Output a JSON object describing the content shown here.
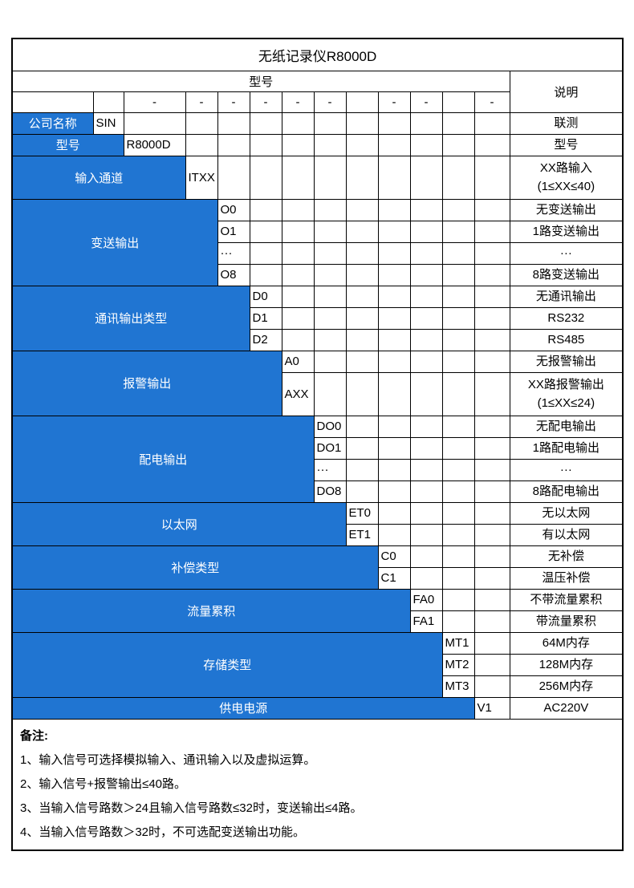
{
  "title": "无纸记录仪R8000D",
  "header": {
    "model_label": "型号",
    "desc_label": "说明"
  },
  "dash_row": [
    "",
    "",
    "-",
    "-",
    "-",
    "-",
    "-",
    "-",
    "",
    "-",
    "-",
    "",
    "-"
  ],
  "groups": [
    {
      "label": "公司名称",
      "span": 1,
      "rows": [
        {
          "code": "SIN",
          "desc": "联测"
        }
      ]
    },
    {
      "label": "型号",
      "span": 2,
      "rows": [
        {
          "code": "R8000D",
          "desc": "型号"
        }
      ]
    },
    {
      "label": "输入通道",
      "span": 3,
      "rows": [
        {
          "code": "ITXX",
          "desc": "XX路输入\n(1≤XX≤40)",
          "tall": true
        }
      ]
    },
    {
      "label": "变送输出",
      "span": 4,
      "rows": [
        {
          "code": "O0",
          "desc": "无变送输出"
        },
        {
          "code": "O1",
          "desc": "1路变送输出"
        },
        {
          "code": "···",
          "desc": "···"
        },
        {
          "code": "O8",
          "desc": "8路变送输出"
        }
      ]
    },
    {
      "label": "通讯输出类型",
      "span": 5,
      "rows": [
        {
          "code": "D0",
          "desc": "无通讯输出"
        },
        {
          "code": "D1",
          "desc": "RS232"
        },
        {
          "code": "D2",
          "desc": "RS485"
        }
      ]
    },
    {
      "label": "报警输出",
      "span": 6,
      "rows": [
        {
          "code": "A0",
          "desc": "无报警输出"
        },
        {
          "code": "AXX",
          "desc": "XX路报警输出\n(1≤XX≤24)",
          "tall": true
        }
      ]
    },
    {
      "label": "配电输出",
      "span": 7,
      "rows": [
        {
          "code": "DO0",
          "desc": "无配电输出"
        },
        {
          "code": "DO1",
          "desc": "1路配电输出"
        },
        {
          "code": "···",
          "desc": "···"
        },
        {
          "code": "DO8",
          "desc": "8路配电输出"
        }
      ]
    },
    {
      "label": "以太网",
      "span": 8,
      "rows": [
        {
          "code": "ET0",
          "desc": "无以太网"
        },
        {
          "code": "ET1",
          "desc": "有以太网"
        }
      ]
    },
    {
      "label": "补偿类型",
      "span": 9,
      "rows": [
        {
          "code": "C0",
          "desc": "无补偿"
        },
        {
          "code": "C1",
          "desc": "温压补偿"
        }
      ]
    },
    {
      "label": "流量累积",
      "span": 10,
      "rows": [
        {
          "code": "FA0",
          "desc": "不带流量累积"
        },
        {
          "code": "FA1",
          "desc": "带流量累积"
        }
      ]
    },
    {
      "label": "存储类型",
      "span": 11,
      "rows": [
        {
          "code": "MT1",
          "desc": "64M内存"
        },
        {
          "code": "MT2",
          "desc": "128M内存"
        },
        {
          "code": "MT3",
          "desc": "256M内存"
        }
      ]
    },
    {
      "label": "供电电源",
      "span": 12,
      "rows": [
        {
          "code": "V1",
          "desc": "AC220V"
        }
      ]
    }
  ],
  "notes": {
    "title": "备注:",
    "items": [
      "1、输入信号可选择模拟输入、通讯输入以及虚拟运算。",
      "2、输入信号+报警输出≤40路。",
      "3、当输入信号路数＞24且输入信号路数≤32时，变送输出≤4路。",
      "4、当输入信号路数＞32时，不可选配变送输出功能。"
    ]
  },
  "colors": {
    "accent_blue": "#2075d2",
    "border": "#000000",
    "background": "#ffffff"
  }
}
